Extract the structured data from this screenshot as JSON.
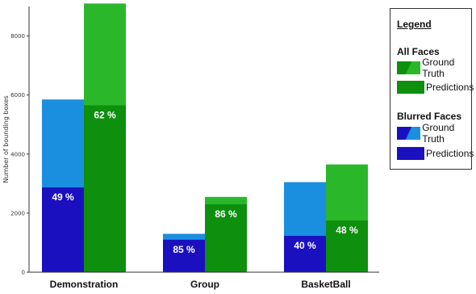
{
  "chart_data": {
    "type": "bar",
    "ylabel": "Number of bounding boxes",
    "ylim": [
      0,
      9000
    ],
    "yticks": [
      0,
      2000,
      4000,
      6000,
      8000
    ],
    "categories": [
      "Demonstration",
      "Group",
      "BasketBall"
    ],
    "series": [
      {
        "name": "Ground Truth",
        "group": "Blurred Faces",
        "values": [
          5850,
          1300,
          3050
        ],
        "color": "#1a8fe0"
      },
      {
        "name": "Predictions",
        "group": "Blurred Faces",
        "values": [
          2870,
          1100,
          1230
        ],
        "color": "#1a10c0"
      },
      {
        "name": "Ground Truth",
        "group": "All Faces",
        "values": [
          9100,
          2550,
          3650
        ],
        "color": "#2ab82a"
      },
      {
        "name": "Predictions",
        "group": "All Faces",
        "values": [
          5650,
          2300,
          1750
        ],
        "color": "#0e8f0e"
      }
    ],
    "annotations": {
      "blurred": [
        "49 %",
        "85 %",
        "40 %"
      ],
      "all": [
        "62 %",
        "86 %",
        "48 %"
      ]
    }
  },
  "legend": {
    "title": "Legend",
    "groups": [
      {
        "title": "All Faces",
        "items": [
          {
            "label": "Ground Truth",
            "colors": [
              "#0e8f0e",
              "#2ab82a"
            ]
          },
          {
            "label": "Predictions",
            "colors": [
              "#0e8f0e",
              "#0e8f0e"
            ]
          }
        ]
      },
      {
        "title": "Blurred Faces",
        "items": [
          {
            "label": "Ground Truth",
            "colors": [
              "#1a10c0",
              "#1a8fe0"
            ]
          },
          {
            "label": "Predictions",
            "colors": [
              "#1a10c0",
              "#1a10c0"
            ]
          }
        ]
      }
    ]
  }
}
